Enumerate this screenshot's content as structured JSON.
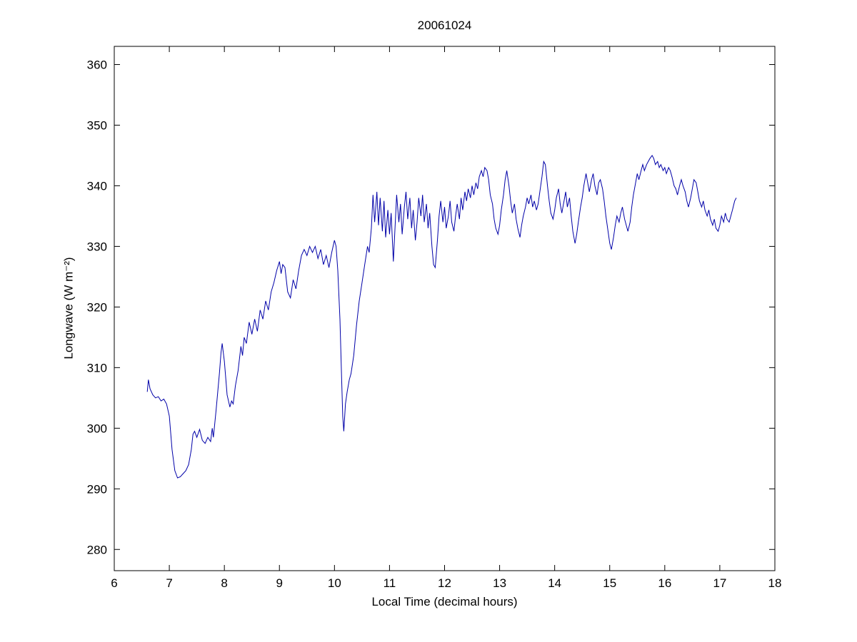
{
  "chart_data": {
    "type": "line",
    "title": "20061024",
    "xlabel": "Local Time (decimal hours)",
    "ylabel": "Longwave (W m⁻²)",
    "xlim": [
      6,
      18
    ],
    "ylim": [
      276.5,
      363
    ],
    "xticks": [
      6,
      7,
      8,
      9,
      10,
      11,
      12,
      13,
      14,
      15,
      16,
      17,
      18
    ],
    "yticks": [
      280,
      290,
      300,
      310,
      320,
      330,
      340,
      350,
      360
    ],
    "grid": false,
    "legend": "none",
    "line_color": "#0000a8",
    "background": "#ffffff",
    "series": [
      {
        "name": "longwave",
        "points": [
          [
            6.6,
            306.0
          ],
          [
            6.62,
            308.0
          ],
          [
            6.65,
            306.5
          ],
          [
            6.7,
            305.5
          ],
          [
            6.75,
            305.0
          ],
          [
            6.8,
            305.2
          ],
          [
            6.85,
            304.5
          ],
          [
            6.9,
            304.8
          ],
          [
            6.95,
            304.0
          ],
          [
            7.0,
            302.0
          ],
          [
            7.05,
            296.5
          ],
          [
            7.1,
            293.0
          ],
          [
            7.15,
            291.8
          ],
          [
            7.2,
            292.0
          ],
          [
            7.25,
            292.5
          ],
          [
            7.3,
            293.0
          ],
          [
            7.35,
            294.0
          ],
          [
            7.4,
            296.5
          ],
          [
            7.43,
            299.0
          ],
          [
            7.46,
            299.5
          ],
          [
            7.5,
            298.5
          ],
          [
            7.55,
            299.8
          ],
          [
            7.6,
            298.0
          ],
          [
            7.65,
            297.5
          ],
          [
            7.7,
            298.5
          ],
          [
            7.75,
            297.8
          ],
          [
            7.78,
            300.0
          ],
          [
            7.8,
            298.5
          ],
          [
            7.85,
            303.0
          ],
          [
            7.88,
            306.0
          ],
          [
            7.91,
            309.0
          ],
          [
            7.94,
            312.5
          ],
          [
            7.96,
            314.0
          ],
          [
            8.0,
            311.0
          ],
          [
            8.05,
            305.5
          ],
          [
            8.1,
            303.5
          ],
          [
            8.13,
            304.5
          ],
          [
            8.16,
            304.0
          ],
          [
            8.2,
            307.0
          ],
          [
            8.25,
            309.5
          ],
          [
            8.3,
            313.5
          ],
          [
            8.33,
            312.0
          ],
          [
            8.36,
            315.0
          ],
          [
            8.4,
            314.0
          ],
          [
            8.45,
            317.5
          ],
          [
            8.5,
            315.5
          ],
          [
            8.55,
            318.0
          ],
          [
            8.6,
            316.0
          ],
          [
            8.65,
            319.5
          ],
          [
            8.7,
            318.0
          ],
          [
            8.75,
            321.0
          ],
          [
            8.8,
            319.5
          ],
          [
            8.85,
            322.5
          ],
          [
            8.9,
            324.0
          ],
          [
            8.95,
            326.0
          ],
          [
            9.0,
            327.5
          ],
          [
            9.03,
            325.5
          ],
          [
            9.06,
            327.0
          ],
          [
            9.1,
            326.5
          ],
          [
            9.15,
            322.5
          ],
          [
            9.2,
            321.5
          ],
          [
            9.25,
            324.5
          ],
          [
            9.3,
            323.0
          ],
          [
            9.35,
            326.0
          ],
          [
            9.4,
            328.5
          ],
          [
            9.45,
            329.5
          ],
          [
            9.5,
            328.5
          ],
          [
            9.55,
            330.0
          ],
          [
            9.6,
            329.0
          ],
          [
            9.65,
            330.0
          ],
          [
            9.7,
            328.0
          ],
          [
            9.75,
            329.5
          ],
          [
            9.8,
            327.0
          ],
          [
            9.85,
            328.5
          ],
          [
            9.9,
            326.5
          ],
          [
            9.95,
            329.0
          ],
          [
            10.0,
            331.0
          ],
          [
            10.03,
            330.0
          ],
          [
            10.06,
            326.0
          ],
          [
            10.1,
            318.0
          ],
          [
            10.13,
            308.0
          ],
          [
            10.15,
            302.0
          ],
          [
            10.17,
            299.5
          ],
          [
            10.2,
            304.0
          ],
          [
            10.23,
            306.0
          ],
          [
            10.27,
            308.0
          ],
          [
            10.3,
            309.0
          ],
          [
            10.35,
            312.0
          ],
          [
            10.4,
            317.0
          ],
          [
            10.45,
            321.0
          ],
          [
            10.5,
            324.0
          ],
          [
            10.55,
            327.0
          ],
          [
            10.6,
            330.0
          ],
          [
            10.63,
            329.0
          ],
          [
            10.67,
            333.0
          ],
          [
            10.7,
            338.5
          ],
          [
            10.73,
            334.0
          ],
          [
            10.77,
            339.0
          ],
          [
            10.8,
            333.5
          ],
          [
            10.83,
            338.0
          ],
          [
            10.87,
            332.5
          ],
          [
            10.9,
            337.5
          ],
          [
            10.93,
            331.5
          ],
          [
            10.97,
            336.0
          ],
          [
            11.0,
            332.0
          ],
          [
            11.03,
            335.5
          ],
          [
            11.07,
            327.5
          ],
          [
            11.1,
            333.0
          ],
          [
            11.13,
            338.5
          ],
          [
            11.17,
            334.0
          ],
          [
            11.2,
            337.0
          ],
          [
            11.23,
            332.0
          ],
          [
            11.27,
            336.5
          ],
          [
            11.3,
            339.0
          ],
          [
            11.33,
            334.5
          ],
          [
            11.37,
            338.0
          ],
          [
            11.4,
            333.0
          ],
          [
            11.43,
            336.0
          ],
          [
            11.47,
            331.0
          ],
          [
            11.5,
            334.0
          ],
          [
            11.53,
            338.0
          ],
          [
            11.57,
            335.0
          ],
          [
            11.6,
            338.5
          ],
          [
            11.63,
            334.0
          ],
          [
            11.67,
            337.0
          ],
          [
            11.7,
            333.0
          ],
          [
            11.73,
            335.5
          ],
          [
            11.77,
            330.0
          ],
          [
            11.8,
            327.0
          ],
          [
            11.83,
            326.5
          ],
          [
            11.87,
            331.0
          ],
          [
            11.9,
            335.0
          ],
          [
            11.93,
            337.5
          ],
          [
            11.97,
            334.0
          ],
          [
            12.0,
            336.5
          ],
          [
            12.03,
            333.0
          ],
          [
            12.07,
            335.0
          ],
          [
            12.1,
            337.5
          ],
          [
            12.13,
            334.0
          ],
          [
            12.17,
            332.5
          ],
          [
            12.2,
            335.0
          ],
          [
            12.23,
            337.0
          ],
          [
            12.27,
            334.5
          ],
          [
            12.3,
            338.0
          ],
          [
            12.33,
            336.0
          ],
          [
            12.37,
            339.0
          ],
          [
            12.4,
            337.5
          ],
          [
            12.43,
            339.5
          ],
          [
            12.47,
            338.0
          ],
          [
            12.5,
            340.0
          ],
          [
            12.53,
            338.5
          ],
          [
            12.57,
            340.5
          ],
          [
            12.6,
            339.5
          ],
          [
            12.63,
            341.5
          ],
          [
            12.67,
            342.5
          ],
          [
            12.7,
            341.5
          ],
          [
            12.73,
            343.0
          ],
          [
            12.77,
            342.5
          ],
          [
            12.8,
            341.0
          ],
          [
            12.83,
            338.5
          ],
          [
            12.87,
            337.0
          ],
          [
            12.9,
            334.5
          ],
          [
            12.93,
            333.0
          ],
          [
            12.97,
            332.0
          ],
          [
            13.0,
            333.5
          ],
          [
            13.03,
            336.0
          ],
          [
            13.07,
            338.5
          ],
          [
            13.1,
            341.0
          ],
          [
            13.13,
            342.5
          ],
          [
            13.17,
            340.0
          ],
          [
            13.2,
            337.5
          ],
          [
            13.23,
            335.5
          ],
          [
            13.27,
            337.0
          ],
          [
            13.3,
            334.5
          ],
          [
            13.33,
            333.0
          ],
          [
            13.37,
            331.5
          ],
          [
            13.4,
            333.5
          ],
          [
            13.43,
            335.0
          ],
          [
            13.47,
            336.5
          ],
          [
            13.5,
            338.0
          ],
          [
            13.53,
            337.0
          ],
          [
            13.57,
            338.5
          ],
          [
            13.6,
            336.5
          ],
          [
            13.63,
            337.5
          ],
          [
            13.67,
            336.0
          ],
          [
            13.7,
            337.0
          ],
          [
            13.73,
            339.0
          ],
          [
            13.77,
            341.5
          ],
          [
            13.8,
            344.0
          ],
          [
            13.83,
            343.5
          ],
          [
            13.87,
            340.0
          ],
          [
            13.9,
            337.5
          ],
          [
            13.93,
            335.5
          ],
          [
            13.97,
            334.5
          ],
          [
            14.0,
            336.0
          ],
          [
            14.03,
            338.0
          ],
          [
            14.07,
            339.5
          ],
          [
            14.1,
            337.0
          ],
          [
            14.13,
            335.5
          ],
          [
            14.17,
            337.5
          ],
          [
            14.2,
            339.0
          ],
          [
            14.23,
            336.5
          ],
          [
            14.27,
            338.0
          ],
          [
            14.3,
            335.0
          ],
          [
            14.33,
            332.5
          ],
          [
            14.37,
            330.5
          ],
          [
            14.4,
            332.0
          ],
          [
            14.43,
            334.0
          ],
          [
            14.47,
            336.5
          ],
          [
            14.5,
            338.0
          ],
          [
            14.53,
            340.0
          ],
          [
            14.57,
            342.0
          ],
          [
            14.6,
            340.5
          ],
          [
            14.63,
            339.0
          ],
          [
            14.67,
            341.0
          ],
          [
            14.7,
            342.0
          ],
          [
            14.73,
            340.0
          ],
          [
            14.77,
            338.5
          ],
          [
            14.8,
            340.5
          ],
          [
            14.83,
            341.0
          ],
          [
            14.87,
            339.5
          ],
          [
            14.9,
            337.5
          ],
          [
            14.93,
            335.0
          ],
          [
            14.97,
            332.5
          ],
          [
            15.0,
            330.5
          ],
          [
            15.03,
            329.5
          ],
          [
            15.07,
            331.5
          ],
          [
            15.1,
            333.5
          ],
          [
            15.13,
            335.0
          ],
          [
            15.17,
            334.0
          ],
          [
            15.2,
            335.5
          ],
          [
            15.23,
            336.5
          ],
          [
            15.27,
            334.5
          ],
          [
            15.3,
            333.5
          ],
          [
            15.33,
            332.5
          ],
          [
            15.37,
            334.0
          ],
          [
            15.4,
            336.5
          ],
          [
            15.43,
            338.5
          ],
          [
            15.47,
            340.5
          ],
          [
            15.5,
            342.0
          ],
          [
            15.53,
            341.0
          ],
          [
            15.57,
            342.5
          ],
          [
            15.6,
            343.5
          ],
          [
            15.63,
            342.5
          ],
          [
            15.67,
            343.5
          ],
          [
            15.7,
            344.0
          ],
          [
            15.73,
            344.5
          ],
          [
            15.77,
            345.0
          ],
          [
            15.8,
            344.5
          ],
          [
            15.83,
            343.5
          ],
          [
            15.87,
            344.0
          ],
          [
            15.9,
            343.0
          ],
          [
            15.93,
            343.5
          ],
          [
            15.97,
            342.5
          ],
          [
            16.0,
            343.0
          ],
          [
            16.03,
            342.0
          ],
          [
            16.07,
            343.0
          ],
          [
            16.1,
            342.5
          ],
          [
            16.13,
            341.5
          ],
          [
            16.17,
            340.0
          ],
          [
            16.2,
            339.5
          ],
          [
            16.23,
            338.5
          ],
          [
            16.27,
            340.0
          ],
          [
            16.3,
            341.0
          ],
          [
            16.33,
            340.0
          ],
          [
            16.37,
            339.0
          ],
          [
            16.4,
            337.5
          ],
          [
            16.43,
            336.5
          ],
          [
            16.47,
            338.0
          ],
          [
            16.5,
            339.5
          ],
          [
            16.53,
            341.0
          ],
          [
            16.57,
            340.5
          ],
          [
            16.6,
            339.0
          ],
          [
            16.63,
            337.5
          ],
          [
            16.67,
            336.5
          ],
          [
            16.7,
            337.5
          ],
          [
            16.73,
            336.0
          ],
          [
            16.77,
            335.0
          ],
          [
            16.8,
            336.0
          ],
          [
            16.83,
            334.5
          ],
          [
            16.87,
            333.5
          ],
          [
            16.9,
            334.5
          ],
          [
            16.93,
            333.0
          ],
          [
            16.97,
            332.5
          ],
          [
            17.0,
            333.5
          ],
          [
            17.03,
            335.0
          ],
          [
            17.07,
            334.0
          ],
          [
            17.1,
            335.5
          ],
          [
            17.13,
            334.5
          ],
          [
            17.17,
            334.0
          ],
          [
            17.2,
            335.0
          ],
          [
            17.23,
            336.0
          ],
          [
            17.27,
            337.5
          ],
          [
            17.3,
            338.0
          ]
        ]
      }
    ]
  }
}
